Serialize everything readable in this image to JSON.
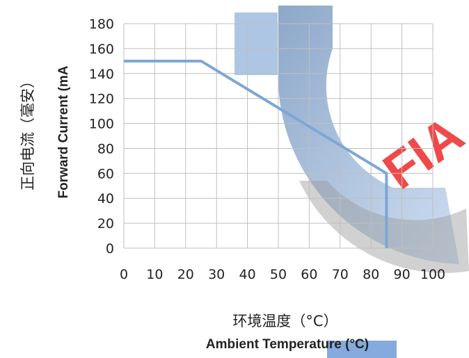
{
  "chart_data": {
    "type": "line",
    "title": "",
    "xlabel_cn": "环境温度（°C）",
    "xlabel_en": "Ambient Temperature (°C)",
    "ylabel_cn": "正向电流（毫安）",
    "ylabel_en": "Forward Current (mA",
    "x_ticks": [
      "0",
      "10",
      "20",
      "30",
      "40",
      "50",
      "60",
      "70",
      "80",
      "90",
      "100"
    ],
    "y_ticks": [
      "0",
      "20",
      "40",
      "60",
      "80",
      "100",
      "120",
      "140",
      "160",
      "180"
    ],
    "xlim": [
      0,
      100
    ],
    "ylim": [
      0,
      180
    ],
    "grid": true,
    "series": [
      {
        "x": [
          0,
          25,
          85,
          85
        ],
        "y": [
          150,
          150,
          60,
          0
        ]
      }
    ]
  },
  "watermark": {
    "text": "FIA"
  },
  "colors": {
    "line": "#7ea6d6",
    "line_dark": "#3f6fa8",
    "grid": "#bfbfbf",
    "watermark_ring": "#4a80c2",
    "watermark_text": "#ee2a2a",
    "watermark_bar": "#5b8ed3"
  }
}
